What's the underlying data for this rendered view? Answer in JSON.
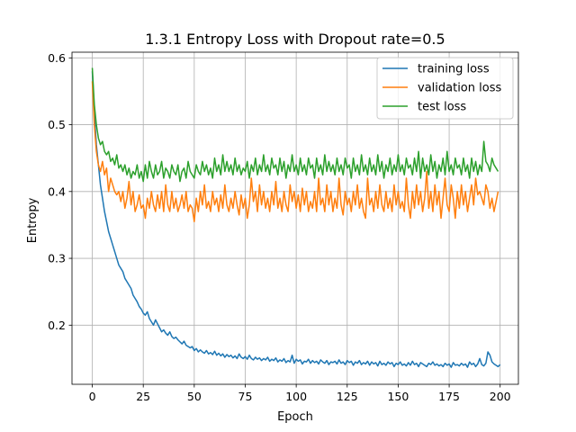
{
  "chart_data": {
    "type": "line",
    "title": "1.3.1 Entropy Loss with Dropout rate=0.5",
    "xlabel": "Epoch",
    "ylabel": "Entropy",
    "xlim": [
      -9.95,
      208.95
    ],
    "ylim": [
      0.1115,
      0.6085
    ],
    "xticks": [
      0,
      25,
      50,
      75,
      100,
      125,
      150,
      175,
      200
    ],
    "yticks": [
      0.2,
      0.3,
      0.4,
      0.5,
      0.6
    ],
    "ytick_labels": [
      "0.2",
      "0.3",
      "0.4",
      "0.5",
      "0.6"
    ],
    "grid": true,
    "legend": "top-right",
    "colors": [
      "#1f77b4",
      "#ff7f0e",
      "#2ca02c"
    ],
    "series": [
      {
        "name": "training loss",
        "color": "#1f77b4",
        "values": [
          0.58,
          0.52,
          0.47,
          0.44,
          0.41,
          0.39,
          0.37,
          0.355,
          0.34,
          0.33,
          0.32,
          0.31,
          0.3,
          0.29,
          0.285,
          0.28,
          0.27,
          0.265,
          0.26,
          0.255,
          0.245,
          0.24,
          0.235,
          0.228,
          0.224,
          0.218,
          0.215,
          0.22,
          0.21,
          0.205,
          0.2,
          0.208,
          0.202,
          0.196,
          0.19,
          0.193,
          0.188,
          0.185,
          0.19,
          0.183,
          0.18,
          0.182,
          0.178,
          0.175,
          0.172,
          0.176,
          0.17,
          0.168,
          0.166,
          0.168,
          0.162,
          0.165,
          0.16,
          0.163,
          0.16,
          0.158,
          0.162,
          0.157,
          0.159,
          0.156,
          0.161,
          0.155,
          0.158,
          0.154,
          0.157,
          0.152,
          0.156,
          0.153,
          0.155,
          0.151,
          0.154,
          0.15,
          0.157,
          0.152,
          0.15,
          0.153,
          0.149,
          0.155,
          0.15,
          0.148,
          0.152,
          0.149,
          0.151,
          0.147,
          0.15,
          0.148,
          0.152,
          0.146,
          0.149,
          0.147,
          0.151,
          0.145,
          0.148,
          0.146,
          0.15,
          0.144,
          0.147,
          0.145,
          0.155,
          0.143,
          0.149,
          0.146,
          0.148,
          0.142,
          0.146,
          0.145,
          0.149,
          0.143,
          0.147,
          0.144,
          0.146,
          0.142,
          0.148,
          0.145,
          0.143,
          0.147,
          0.141,
          0.145,
          0.144,
          0.146,
          0.142,
          0.148,
          0.143,
          0.145,
          0.141,
          0.147,
          0.144,
          0.146,
          0.14,
          0.145,
          0.143,
          0.147,
          0.141,
          0.144,
          0.142,
          0.146,
          0.14,
          0.145,
          0.142,
          0.144,
          0.139,
          0.146,
          0.141,
          0.143,
          0.14,
          0.145,
          0.142,
          0.144,
          0.138,
          0.143,
          0.141,
          0.145,
          0.14,
          0.142,
          0.139,
          0.144,
          0.14,
          0.146,
          0.141,
          0.143,
          0.138,
          0.144,
          0.142,
          0.14,
          0.138,
          0.143,
          0.141,
          0.145,
          0.14,
          0.142,
          0.139,
          0.141,
          0.138,
          0.143,
          0.14,
          0.142,
          0.137,
          0.144,
          0.14,
          0.141,
          0.139,
          0.143,
          0.14,
          0.142,
          0.137,
          0.145,
          0.141,
          0.143,
          0.138,
          0.142,
          0.15,
          0.141,
          0.139,
          0.143,
          0.16,
          0.155,
          0.145,
          0.142,
          0.14,
          0.138,
          0.141
        ]
      },
      {
        "name": "validation loss",
        "color": "#ff7f0e",
        "values": [
          0.565,
          0.5,
          0.46,
          0.44,
          0.43,
          0.445,
          0.425,
          0.435,
          0.4,
          0.42,
          0.41,
          0.4,
          0.395,
          0.4,
          0.385,
          0.4,
          0.375,
          0.39,
          0.415,
          0.38,
          0.4,
          0.37,
          0.38,
          0.395,
          0.375,
          0.38,
          0.36,
          0.39,
          0.375,
          0.4,
          0.38,
          0.37,
          0.395,
          0.375,
          0.4,
          0.37,
          0.41,
          0.38,
          0.37,
          0.4,
          0.375,
          0.39,
          0.37,
          0.38,
          0.395,
          0.375,
          0.4,
          0.37,
          0.38,
          0.375,
          0.355,
          0.39,
          0.37,
          0.4,
          0.38,
          0.41,
          0.375,
          0.385,
          0.37,
          0.4,
          0.38,
          0.39,
          0.37,
          0.395,
          0.375,
          0.41,
          0.38,
          0.37,
          0.39,
          0.375,
          0.4,
          0.38,
          0.365,
          0.395,
          0.375,
          0.39,
          0.36,
          0.38,
          0.42,
          0.385,
          0.4,
          0.37,
          0.41,
          0.38,
          0.4,
          0.375,
          0.39,
          0.37,
          0.4,
          0.38,
          0.415,
          0.375,
          0.39,
          0.37,
          0.4,
          0.38,
          0.37,
          0.41,
          0.385,
          0.4,
          0.375,
          0.395,
          0.37,
          0.405,
          0.38,
          0.4,
          0.37,
          0.385,
          0.375,
          0.4,
          0.37,
          0.42,
          0.38,
          0.39,
          0.37,
          0.41,
          0.38,
          0.4,
          0.37,
          0.39,
          0.375,
          0.42,
          0.38,
          0.365,
          0.4,
          0.38,
          0.39,
          0.37,
          0.4,
          0.38,
          0.41,
          0.375,
          0.39,
          0.37,
          0.36,
          0.42,
          0.38,
          0.39,
          0.37,
          0.4,
          0.375,
          0.41,
          0.38,
          0.37,
          0.4,
          0.375,
          0.39,
          0.37,
          0.41,
          0.38,
          0.4,
          0.375,
          0.385,
          0.37,
          0.42,
          0.38,
          0.36,
          0.4,
          0.375,
          0.41,
          0.38,
          0.4,
          0.37,
          0.39,
          0.43,
          0.375,
          0.4,
          0.37,
          0.41,
          0.38,
          0.4,
          0.36,
          0.39,
          0.42,
          0.38,
          0.37,
          0.41,
          0.39,
          0.36,
          0.4,
          0.375,
          0.41,
          0.38,
          0.4,
          0.37,
          0.39,
          0.41,
          0.38,
          0.42,
          0.395,
          0.4,
          0.39,
          0.38,
          0.41,
          0.4,
          0.375,
          0.39,
          0.37,
          0.385,
          0.4
        ]
      },
      {
        "name": "test loss",
        "color": "#2ca02c",
        "values": [
          0.585,
          0.53,
          0.5,
          0.48,
          0.47,
          0.475,
          0.46,
          0.455,
          0.46,
          0.445,
          0.45,
          0.44,
          0.455,
          0.435,
          0.44,
          0.43,
          0.44,
          0.425,
          0.435,
          0.42,
          0.43,
          0.425,
          0.44,
          0.42,
          0.43,
          0.415,
          0.44,
          0.42,
          0.445,
          0.43,
          0.42,
          0.44,
          0.425,
          0.43,
          0.445,
          0.42,
          0.435,
          0.43,
          0.42,
          0.44,
          0.43,
          0.425,
          0.44,
          0.415,
          0.43,
          0.435,
          0.42,
          0.445,
          0.43,
          0.425,
          0.42,
          0.44,
          0.43,
          0.425,
          0.445,
          0.43,
          0.44,
          0.425,
          0.435,
          0.42,
          0.45,
          0.43,
          0.44,
          0.425,
          0.455,
          0.43,
          0.445,
          0.43,
          0.44,
          0.425,
          0.45,
          0.43,
          0.44,
          0.425,
          0.435,
          0.43,
          0.445,
          0.42,
          0.44,
          0.43,
          0.45,
          0.425,
          0.44,
          0.43,
          0.455,
          0.43,
          0.44,
          0.425,
          0.45,
          0.435,
          0.44,
          0.425,
          0.45,
          0.43,
          0.445,
          0.42,
          0.44,
          0.43,
          0.455,
          0.43,
          0.44,
          0.425,
          0.45,
          0.43,
          0.44,
          0.425,
          0.45,
          0.435,
          0.44,
          0.42,
          0.45,
          0.43,
          0.44,
          0.425,
          0.455,
          0.43,
          0.445,
          0.43,
          0.44,
          0.425,
          0.45,
          0.43,
          0.44,
          0.425,
          0.45,
          0.435,
          0.44,
          0.42,
          0.45,
          0.43,
          0.44,
          0.425,
          0.455,
          0.43,
          0.44,
          0.425,
          0.45,
          0.43,
          0.44,
          0.425,
          0.455,
          0.43,
          0.445,
          0.42,
          0.44,
          0.43,
          0.45,
          0.425,
          0.44,
          0.43,
          0.455,
          0.43,
          0.44,
          0.425,
          0.45,
          0.435,
          0.44,
          0.425,
          0.45,
          0.43,
          0.46,
          0.42,
          0.45,
          0.43,
          0.44,
          0.425,
          0.455,
          0.43,
          0.445,
          0.42,
          0.44,
          0.43,
          0.45,
          0.425,
          0.46,
          0.43,
          0.44,
          0.425,
          0.45,
          0.435,
          0.44,
          0.425,
          0.45,
          0.43,
          0.44,
          0.42,
          0.45,
          0.43,
          0.445,
          0.425,
          0.44,
          0.43,
          0.475,
          0.445,
          0.44,
          0.43,
          0.45,
          0.44,
          0.435,
          0.43
        ]
      }
    ]
  }
}
